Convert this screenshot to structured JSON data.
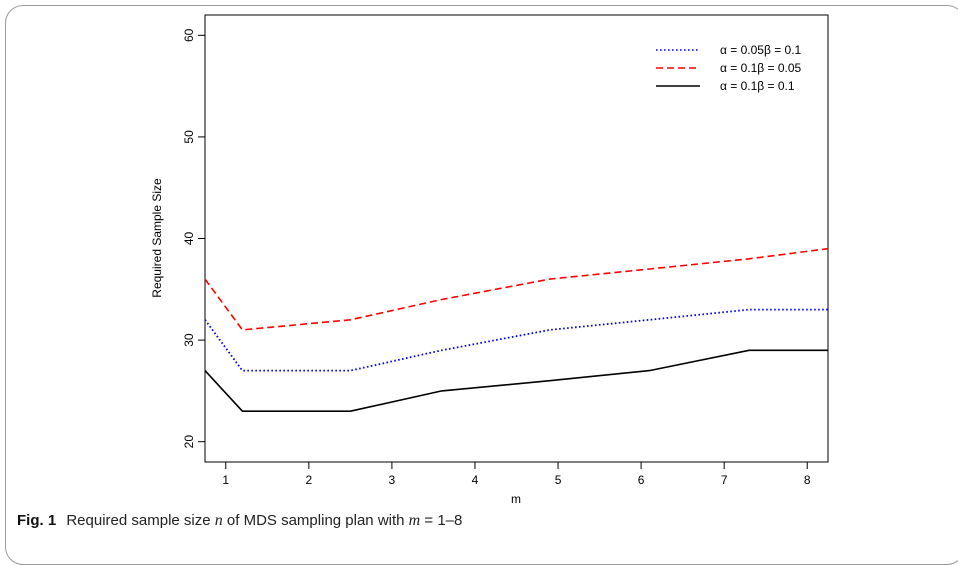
{
  "caption": {
    "fig_label": "Fig. 1",
    "text_before_n": "Required sample size ",
    "n_symbol": "n",
    "text_middle": " of MDS sampling plan with ",
    "m_symbol": "m",
    "text_after": " = 1–8"
  },
  "chart_data": {
    "type": "line",
    "xlabel": "m",
    "ylabel": "Required Sample Size",
    "xlim": [
      0.75,
      8.25
    ],
    "ylim": [
      18,
      62
    ],
    "xticks": [
      1,
      2,
      3,
      4,
      5,
      6,
      7,
      8
    ],
    "yticks": [
      20,
      30,
      40,
      50,
      60
    ],
    "legend_position": "top-right",
    "series": [
      {
        "name": "α = 0.05β = 0.1",
        "color": "#0000ff",
        "style": "dotted",
        "points": [
          [
            0.75,
            32
          ],
          [
            1.2,
            27
          ],
          [
            2.5,
            27
          ],
          [
            3.6,
            29
          ],
          [
            4.9,
            31
          ],
          [
            6.1,
            32
          ],
          [
            7.3,
            33
          ],
          [
            8.25,
            33
          ]
        ]
      },
      {
        "name": "α = 0.1β = 0.05",
        "color": "#ff0000",
        "style": "dashed",
        "points": [
          [
            0.75,
            36
          ],
          [
            1.2,
            31
          ],
          [
            2.5,
            32
          ],
          [
            3.6,
            34
          ],
          [
            4.9,
            36
          ],
          [
            6.1,
            37
          ],
          [
            7.3,
            38
          ],
          [
            8.25,
            39
          ]
        ]
      },
      {
        "name": "α = 0.1β = 0.1",
        "color": "#000000",
        "style": "solid",
        "points": [
          [
            0.75,
            27
          ],
          [
            1.2,
            23
          ],
          [
            2.5,
            23
          ],
          [
            3.6,
            25
          ],
          [
            4.9,
            26
          ],
          [
            6.1,
            27
          ],
          [
            7.3,
            29
          ],
          [
            8.25,
            29
          ]
        ]
      }
    ]
  }
}
